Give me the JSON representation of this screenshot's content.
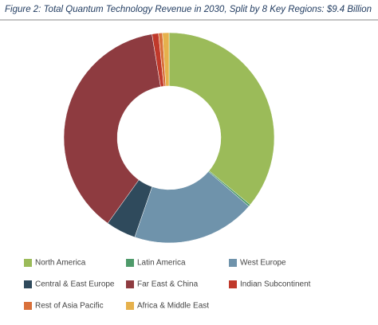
{
  "chart_data": {
    "type": "donut",
    "title": "Figure 2: Total Quantum Technology Revenue in 2030, Split by 8 Key Regions: $9.4 Billion",
    "categories": [
      "North America",
      "Latin America",
      "West Europe",
      "Central & East Europe",
      "Far East & China",
      "Indian Subcontinent",
      "Rest of Asia Pacific",
      "Africa & Middle East"
    ],
    "values": [
      36,
      0.3,
      19,
      4.6,
      37.5,
      1,
      0.6,
      1
    ],
    "colors": [
      "#9bbb59",
      "#4e9a6a",
      "#6f93ab",
      "#2f4a5c",
      "#8e3b40",
      "#c0392b",
      "#d9703a",
      "#e6b14c"
    ]
  }
}
